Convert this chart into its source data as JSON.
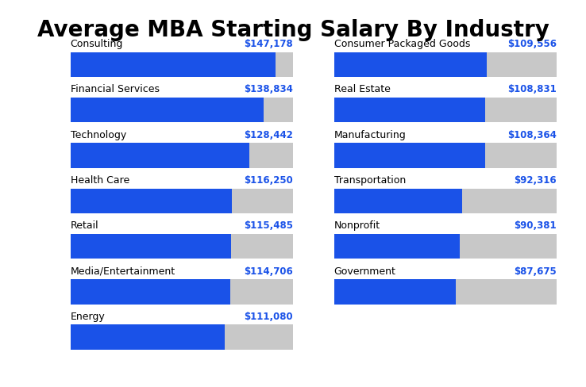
{
  "title": "Average MBA Starting Salary By Industry",
  "title_fontsize": 20,
  "title_fontweight": "bold",
  "background_color": "#ffffff",
  "max_value": 160000,
  "bar_color": "#1a52e8",
  "bg_bar_color": "#c8c8c8",
  "bar_height": 0.55,
  "left_industries": [
    {
      "name": "Consulting",
      "value": 147178
    },
    {
      "name": "Financial Services",
      "value": 138834
    },
    {
      "name": "Technology",
      "value": 128442
    },
    {
      "name": "Health Care",
      "value": 116250
    },
    {
      "name": "Retail",
      "value": 115485
    },
    {
      "name": "Media/Entertainment",
      "value": 114706
    },
    {
      "name": "Energy",
      "value": 111080
    }
  ],
  "right_industries": [
    {
      "name": "Consumer Packaged Goods",
      "value": 109556
    },
    {
      "name": "Real Estate",
      "value": 108831
    },
    {
      "name": "Manufacturing",
      "value": 108364
    },
    {
      "name": "Transportation",
      "value": 92316
    },
    {
      "name": "Nonprofit",
      "value": 90381
    },
    {
      "name": "Government",
      "value": 87675
    }
  ],
  "label_color": "#1a52e8",
  "text_color": "#000000",
  "label_fontsize": 8.5,
  "name_fontsize": 9
}
